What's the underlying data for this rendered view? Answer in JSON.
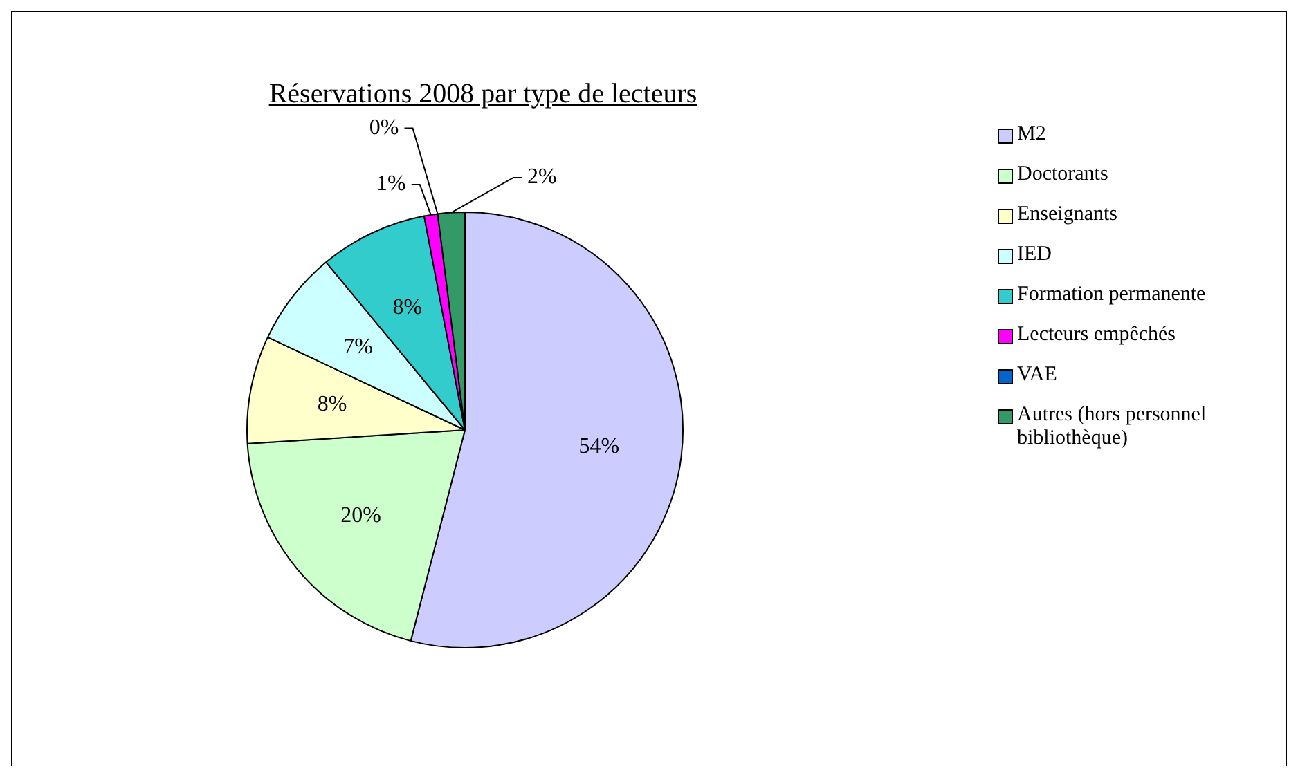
{
  "chart_data": {
    "type": "pie",
    "title": "Réservations 2008 par type de lecteurs",
    "categories": [
      "M2",
      "Doctorants",
      "Enseignants",
      "IED",
      "Formation permanente",
      "Lecteurs empêchés",
      "VAE",
      "Autres (hors personnel bibliothèque)"
    ],
    "values": [
      54,
      20,
      8,
      7,
      8,
      1,
      0,
      2
    ],
    "colors": [
      "#ccccff",
      "#ccffcc",
      "#ffffcc",
      "#ccffff",
      "#33cccc",
      "#ff00ff",
      "#0066cc",
      "#339966"
    ],
    "value_labels": [
      "54%",
      "20%",
      "8%",
      "7%",
      "8%",
      "1%",
      "0%",
      "2%"
    ],
    "legend": "right"
  }
}
